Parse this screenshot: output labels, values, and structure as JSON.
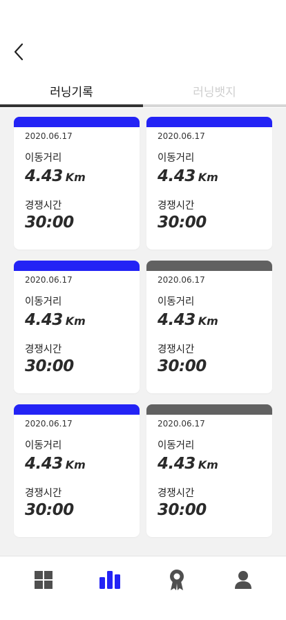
{
  "header": {
    "back_icon": "chevron-left-icon"
  },
  "tabs": [
    {
      "label": "러닝기록",
      "active": true
    },
    {
      "label": "러닝뱃지",
      "active": false
    }
  ],
  "colors": {
    "accent": "#2323f5",
    "muted": "#616161",
    "tab_active": "#333333",
    "tab_inactive": "#cfcfcf"
  },
  "labels": {
    "distance": "이동거리",
    "time": "경쟁시간",
    "unit": "Km"
  },
  "cards": [
    {
      "date": "2020.06.17",
      "distance": "4.43",
      "time": "30:00",
      "status": "active"
    },
    {
      "date": "2020.06.17",
      "distance": "4.43",
      "time": "30:00",
      "status": "active"
    },
    {
      "date": "2020.06.17",
      "distance": "4.43",
      "time": "30:00",
      "status": "active"
    },
    {
      "date": "2020.06.17",
      "distance": "4.43",
      "time": "30:00",
      "status": "muted"
    },
    {
      "date": "2020.06.17",
      "distance": "4.43",
      "time": "30:00",
      "status": "active"
    },
    {
      "date": "2020.06.17",
      "distance": "4.43",
      "time": "30:00",
      "status": "muted"
    }
  ],
  "bottom_nav": [
    {
      "icon": "dashboard-icon",
      "active": false
    },
    {
      "icon": "bar-chart-icon",
      "active": true
    },
    {
      "icon": "badge-icon",
      "active": false
    },
    {
      "icon": "profile-icon",
      "active": false
    }
  ]
}
